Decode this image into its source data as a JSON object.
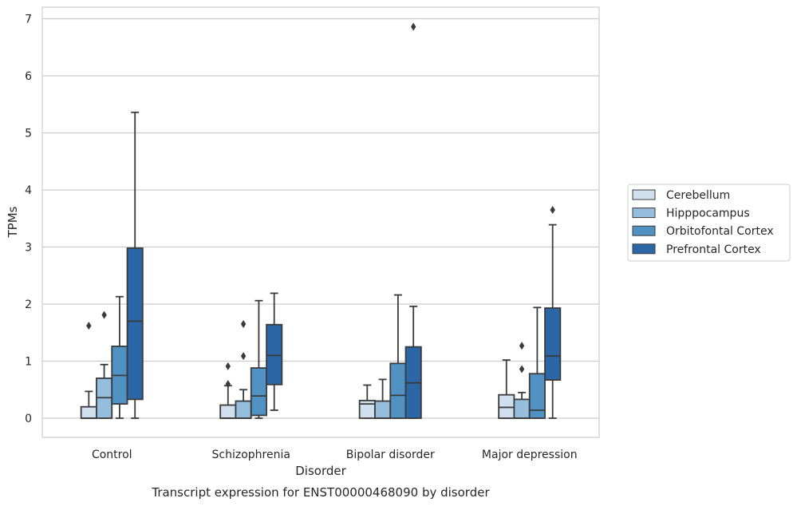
{
  "chart_data": {
    "type": "box",
    "title": "Transcript expression for ENST00000468090 by disorder",
    "xlabel": "Disorder",
    "ylabel": "TPMs",
    "ylim": [
      -0.33,
      7.2
    ],
    "yticks": [
      0,
      1,
      2,
      3,
      4,
      5,
      6,
      7
    ],
    "grid": "horizontal",
    "legend_position": "right",
    "categories": [
      "Control",
      "Schizophrenia",
      "Bipolar disorder",
      "Major depression"
    ],
    "series": [
      {
        "name": "Cerebellum",
        "color": "#d0dfee",
        "boxes": [
          {
            "whisker_low": 0.0,
            "q1": 0.0,
            "median": 0.0,
            "q3": 0.2,
            "whisker_high": 0.47,
            "outliers": [
              1.62
            ]
          },
          {
            "whisker_low": 0.0,
            "q1": 0.0,
            "median": 0.0,
            "q3": 0.23,
            "whisker_high": 0.57,
            "outliers": [
              0.6,
              0.91
            ]
          },
          {
            "whisker_low": 0.0,
            "q1": 0.0,
            "median": 0.25,
            "q3": 0.31,
            "whisker_high": 0.58,
            "outliers": []
          },
          {
            "whisker_low": 0.0,
            "q1": 0.0,
            "median": 0.19,
            "q3": 0.41,
            "whisker_high": 1.02,
            "outliers": []
          }
        ]
      },
      {
        "name": "Hipppocampus",
        "color": "#95bedc",
        "boxes": [
          {
            "whisker_low": 0.0,
            "q1": 0.0,
            "median": 0.36,
            "q3": 0.7,
            "whisker_high": 0.94,
            "outliers": [
              1.81
            ]
          },
          {
            "whisker_low": 0.0,
            "q1": 0.0,
            "median": 0.0,
            "q3": 0.3,
            "whisker_high": 0.5,
            "outliers": [
              1.09,
              1.65
            ]
          },
          {
            "whisker_low": 0.0,
            "q1": 0.0,
            "median": 0.0,
            "q3": 0.3,
            "whisker_high": 0.68,
            "outliers": []
          },
          {
            "whisker_low": 0.0,
            "q1": 0.0,
            "median": 0.0,
            "q3": 0.33,
            "whisker_high": 0.45,
            "outliers": [
              0.86,
              1.27
            ]
          }
        ]
      },
      {
        "name": "Orbitofontal Cortex",
        "color": "#5192c4",
        "boxes": [
          {
            "whisker_low": 0.0,
            "q1": 0.25,
            "median": 0.75,
            "q3": 1.26,
            "whisker_high": 2.13,
            "outliers": []
          },
          {
            "whisker_low": 0.0,
            "q1": 0.05,
            "median": 0.39,
            "q3": 0.88,
            "whisker_high": 2.06,
            "outliers": []
          },
          {
            "whisker_low": 0.0,
            "q1": 0.0,
            "median": 0.4,
            "q3": 0.96,
            "whisker_high": 2.16,
            "outliers": []
          },
          {
            "whisker_low": 0.0,
            "q1": 0.0,
            "median": 0.14,
            "q3": 0.78,
            "whisker_high": 1.94,
            "outliers": []
          }
        ]
      },
      {
        "name": "Prefrontal Cortex",
        "color": "#2b66a6",
        "boxes": [
          {
            "whisker_low": 0.0,
            "q1": 0.33,
            "median": 1.7,
            "q3": 2.98,
            "whisker_high": 5.36,
            "outliers": []
          },
          {
            "whisker_low": 0.14,
            "q1": 0.59,
            "median": 1.1,
            "q3": 1.64,
            "whisker_high": 2.19,
            "outliers": []
          },
          {
            "whisker_low": 0.0,
            "q1": 0.0,
            "median": 0.62,
            "q3": 1.25,
            "whisker_high": 1.96,
            "outliers": [
              6.86
            ]
          },
          {
            "whisker_low": 0.0,
            "q1": 0.67,
            "median": 1.09,
            "q3": 1.93,
            "whisker_high": 3.39,
            "outliers": [
              3.65
            ]
          }
        ]
      }
    ]
  }
}
